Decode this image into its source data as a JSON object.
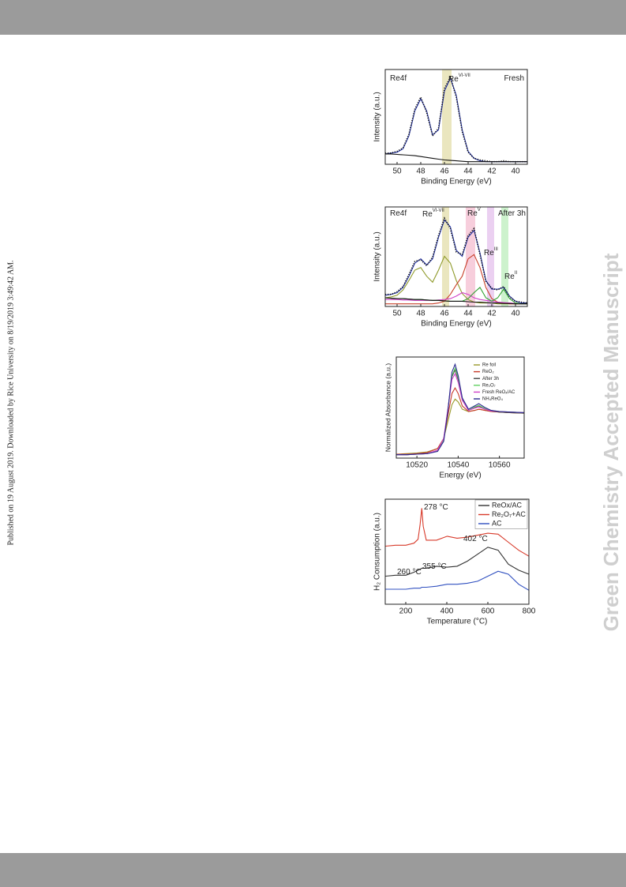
{
  "page": {
    "side_note": "Published on 19 August 2019. Downloaded by Rice University on 8/19/2019 3:49:42 AM.",
    "watermark": "Green Chemistry Accepted Manuscript"
  },
  "chart_data": [
    {
      "type": "line",
      "xlabel": "Binding Energy (eV)",
      "ylabel": "Intensity (a.u.)",
      "xlim": [
        51,
        39
      ],
      "xticks": [
        50,
        48,
        46,
        44,
        42,
        40
      ],
      "ylim": [
        0,
        110
      ],
      "annotations": [
        {
          "text": "Re4f"
        },
        {
          "text": "Re",
          "sup": "VI-VII"
        },
        {
          "text": "Fresh"
        }
      ],
      "bands": [
        {
          "x": [
            46.2,
            45.4
          ],
          "color": "#e6e2b4"
        }
      ],
      "x": [
        51,
        50.5,
        50,
        49.5,
        49,
        48.5,
        48,
        47.5,
        47,
        46.5,
        46,
        45.5,
        45,
        44.5,
        44,
        43.5,
        43,
        42.5,
        42,
        41.5,
        41,
        40.5,
        40,
        39.5,
        39
      ],
      "series": [
        {
          "color": "#1f2fa8",
          "values": [
            12,
            13,
            14,
            18,
            33,
            62,
            76,
            62,
            34,
            40,
            85,
            100,
            80,
            40,
            15,
            7,
            4,
            3,
            3,
            3,
            3,
            3,
            3,
            3,
            3
          ]
        },
        {
          "color": "#111111",
          "style": "dotted",
          "values": [
            13,
            13,
            15,
            19,
            35,
            64,
            78,
            60,
            33,
            42,
            88,
            101,
            78,
            38,
            14,
            7,
            5,
            4,
            3,
            3,
            4,
            3,
            3,
            3,
            3
          ]
        },
        {
          "color": "#111111",
          "values": [
            12,
            12,
            11.5,
            11,
            10.5,
            10,
            9,
            8,
            7,
            6,
            5,
            4.5,
            4,
            3.5,
            3,
            3,
            3,
            3,
            3,
            3,
            3,
            3,
            3,
            3,
            3
          ]
        }
      ]
    },
    {
      "type": "line",
      "xlabel": "Binding Energy (eV)",
      "ylabel": "Intensity (a.u.)",
      "xlim": [
        51,
        39
      ],
      "xticks": [
        50,
        48,
        46,
        44,
        42,
        40
      ],
      "ylim": [
        0,
        115
      ],
      "annotations": [
        {
          "text": "Re4f"
        },
        {
          "text": "Re",
          "sup": "VI-VII"
        },
        {
          "text": "Re",
          "sup": "V"
        },
        {
          "text": "After 3h"
        },
        {
          "text": "Re",
          "sup": "III"
        },
        {
          "text": "Re",
          "sup": "II"
        }
      ],
      "bands": [
        {
          "x": [
            46.2,
            45.6
          ],
          "color": "#e6e2b4"
        },
        {
          "x": [
            44.2,
            43.4
          ],
          "color": "#f6c6d6"
        },
        {
          "x": [
            42.4,
            41.8
          ],
          "color": "#e8c8ee"
        },
        {
          "x": [
            41.2,
            40.6
          ],
          "color": "#c4f0c4"
        }
      ],
      "x": [
        51,
        50.5,
        50,
        49.5,
        49,
        48.5,
        48,
        47.5,
        47,
        46.5,
        46,
        45.5,
        45,
        44.5,
        44,
        43.5,
        43,
        42.5,
        42,
        41.5,
        41,
        40.5,
        40,
        39.5,
        39
      ],
      "series": [
        {
          "color": "#1f2fa8",
          "values": [
            13,
            14,
            16,
            22,
            35,
            50,
            55,
            48,
            55,
            80,
            100,
            92,
            65,
            58,
            80,
            88,
            62,
            30,
            20,
            20,
            22,
            12,
            6,
            4,
            4
          ]
        },
        {
          "color": "#111111",
          "style": "dotted",
          "values": [
            14,
            14,
            17,
            23,
            37,
            52,
            54,
            47,
            57,
            82,
            102,
            90,
            63,
            60,
            82,
            90,
            60,
            29,
            21,
            19,
            23,
            11,
            6,
            5,
            4
          ]
        },
        {
          "color": "#8f9a2a",
          "values": [
            10,
            11,
            13,
            19,
            30,
            42,
            45,
            35,
            28,
            42,
            58,
            50,
            30,
            15,
            8,
            5,
            4,
            4,
            4,
            3,
            3,
            3,
            3,
            3,
            3
          ]
        },
        {
          "color": "#c8402a",
          "values": [
            3,
            3,
            3,
            3,
            3,
            3,
            3,
            3,
            3,
            4,
            6,
            14,
            25,
            35,
            55,
            60,
            45,
            22,
            9,
            5,
            4,
            3,
            3,
            3,
            3
          ]
        },
        {
          "color": "#d040c8",
          "values": [
            8,
            8,
            8,
            7.5,
            7.5,
            7,
            7,
            7,
            7,
            7.5,
            8,
            9,
            12,
            16,
            14,
            10,
            8,
            7,
            6,
            5,
            4.5,
            4,
            3.5,
            3,
            3
          ]
        },
        {
          "color": "#30a030",
          "values": [
            10,
            9.5,
            9,
            9,
            8.5,
            8,
            8,
            7.5,
            7,
            7,
            6.5,
            6,
            6,
            6,
            9,
            16,
            22,
            10,
            6,
            10,
            20,
            9,
            4,
            3,
            3
          ]
        },
        {
          "color": "#111111",
          "values": [
            10,
            9.5,
            9,
            9,
            8.5,
            8,
            8,
            7.5,
            7,
            7,
            6.5,
            6,
            6,
            6,
            5.5,
            5,
            5,
            4.5,
            4,
            4,
            3.5,
            3.5,
            3,
            3,
            3
          ]
        }
      ]
    },
    {
      "type": "line",
      "xlabel": "Energy (eV)",
      "ylabel": "Normalized Absorbance (a.u.)",
      "xlim": [
        10510,
        10572
      ],
      "xticks": [
        10520,
        10540,
        10560
      ],
      "ylim": [
        -0.05,
        1.75
      ],
      "legend": "upper right",
      "legend_size": "small",
      "x": [
        10510,
        10515,
        10520,
        10525,
        10530,
        10533,
        10535,
        10537,
        10538.5,
        10540,
        10542,
        10545,
        10548,
        10550,
        10553,
        10556,
        10560,
        10565,
        10572
      ],
      "series": [
        {
          "name": "Re foil",
          "color": "#9a9a2a",
          "values": [
            0.02,
            0.03,
            0.04,
            0.06,
            0.12,
            0.3,
            0.6,
            0.9,
            1.0,
            0.95,
            0.82,
            0.78,
            0.8,
            0.82,
            0.8,
            0.78,
            0.77,
            0.76,
            0.75
          ]
        },
        {
          "name": "ReO₂",
          "color": "#c83a2a",
          "values": [
            0.02,
            0.02,
            0.03,
            0.05,
            0.12,
            0.3,
            0.7,
            1.1,
            1.2,
            1.1,
            0.88,
            0.78,
            0.8,
            0.82,
            0.8,
            0.78,
            0.77,
            0.76,
            0.75
          ]
        },
        {
          "name": "After 3h",
          "color": "#444444",
          "values": [
            0.01,
            0.01,
            0.02,
            0.03,
            0.08,
            0.28,
            0.8,
            1.4,
            1.52,
            1.35,
            1.0,
            0.8,
            0.85,
            0.88,
            0.82,
            0.79,
            0.77,
            0.76,
            0.75
          ]
        },
        {
          "name": "Re₂O₇",
          "color": "#60d060",
          "values": [
            0.01,
            0.01,
            0.02,
            0.03,
            0.08,
            0.27,
            0.8,
            1.42,
            1.55,
            1.38,
            1.02,
            0.8,
            0.86,
            0.89,
            0.83,
            0.8,
            0.78,
            0.77,
            0.76
          ]
        },
        {
          "name": "Fresh ReOₓ/AC",
          "color": "#d040c8",
          "values": [
            0.01,
            0.01,
            0.02,
            0.03,
            0.09,
            0.3,
            0.82,
            1.35,
            1.45,
            1.3,
            0.98,
            0.8,
            0.84,
            0.86,
            0.82,
            0.79,
            0.78,
            0.77,
            0.76
          ]
        },
        {
          "name": "NH₄ReO₄",
          "color": "#2a2a90",
          "values": [
            0.01,
            0.01,
            0.02,
            0.03,
            0.07,
            0.25,
            0.78,
            1.48,
            1.62,
            1.42,
            1.02,
            0.82,
            0.88,
            0.92,
            0.85,
            0.8,
            0.78,
            0.77,
            0.76
          ]
        }
      ]
    },
    {
      "type": "line",
      "xlabel": "Temperature (°C)",
      "ylabel": "H₂ Consumption (a.u.)",
      "xlim": [
        100,
        800
      ],
      "xticks": [
        200,
        400,
        600,
        800
      ],
      "ylim": [
        0,
        105
      ],
      "legend": "upper right",
      "annotations": [
        {
          "text": "278 °C"
        },
        {
          "text": "402 °C"
        },
        {
          "text": "260 °C"
        },
        {
          "text": "355 °C"
        }
      ],
      "x": [
        100,
        150,
        200,
        240,
        260,
        270,
        278,
        285,
        300,
        350,
        402,
        450,
        500,
        550,
        600,
        650,
        700,
        750,
        800
      ],
      "series": [
        {
          "name": "ReOx/AC",
          "color": "#333333",
          "values": [
            28,
            29,
            29,
            32,
            34,
            35,
            36,
            36,
            36,
            38,
            37,
            38,
            43,
            50,
            57,
            54,
            40,
            34,
            30
          ]
        },
        {
          "name": "Re₂O₇+AC",
          "color": "#d83a2a",
          "values": [
            58,
            59,
            59,
            61,
            65,
            80,
            96,
            78,
            64,
            64,
            68,
            66,
            67,
            69,
            71,
            70,
            62,
            54,
            48
          ]
        },
        {
          "name": "AC",
          "color": "#3050c0",
          "values": [
            15,
            15,
            15,
            16,
            16,
            16,
            17,
            17,
            17,
            18,
            20,
            20,
            21,
            23,
            28,
            33,
            30,
            20,
            14
          ]
        }
      ]
    }
  ]
}
